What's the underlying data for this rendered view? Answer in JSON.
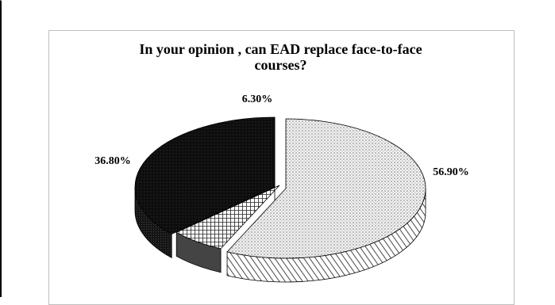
{
  "chart_data": {
    "type": "pie",
    "title": "In your opinion , can EAD replace face-to-face courses?",
    "categories": [
      "",
      "",
      ""
    ],
    "values": [
      56.9,
      6.3,
      36.8
    ],
    "labels": [
      "56.90%",
      "6.30%",
      "36.80%"
    ],
    "colors": [
      "#e8e8e8",
      "#d9d9d9",
      "#111111"
    ],
    "legend": "none",
    "style": "3d-exploded"
  }
}
